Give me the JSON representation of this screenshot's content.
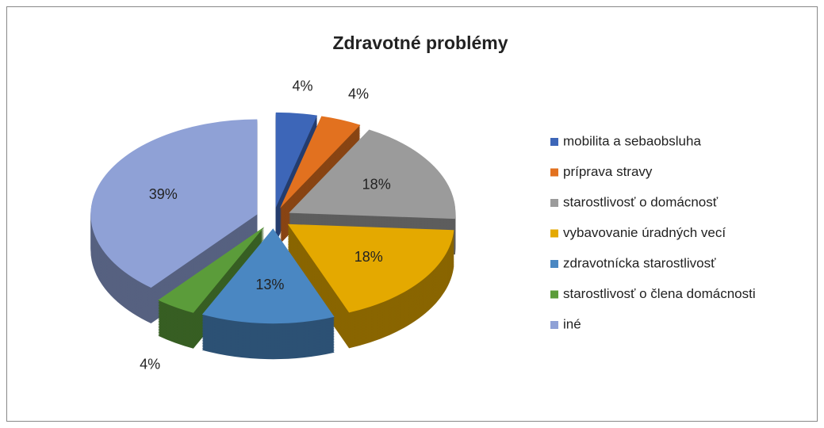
{
  "chart_data": {
    "type": "pie",
    "title": "Zdravotné problémy",
    "categories": [
      "mobilita a sebaobsluha",
      "príprava stravy",
      "starostlivosť o domácnosť",
      "vybavovanie úradných vecí",
      "zdravotnícka starostlivosť",
      "starostlivosť o člena domácnosti",
      "iné"
    ],
    "values": [
      4,
      4,
      18,
      18,
      13,
      4,
      39
    ],
    "value_labels": [
      "4%",
      "4%",
      "18%",
      "18%",
      "13%",
      "4%",
      "39%"
    ],
    "colors": [
      "#3d66b8",
      "#e2711f",
      "#9b9b9b",
      "#e4a900",
      "#4a87c2",
      "#5b9c3a",
      "#8fa1d6"
    ],
    "legend": "right"
  }
}
